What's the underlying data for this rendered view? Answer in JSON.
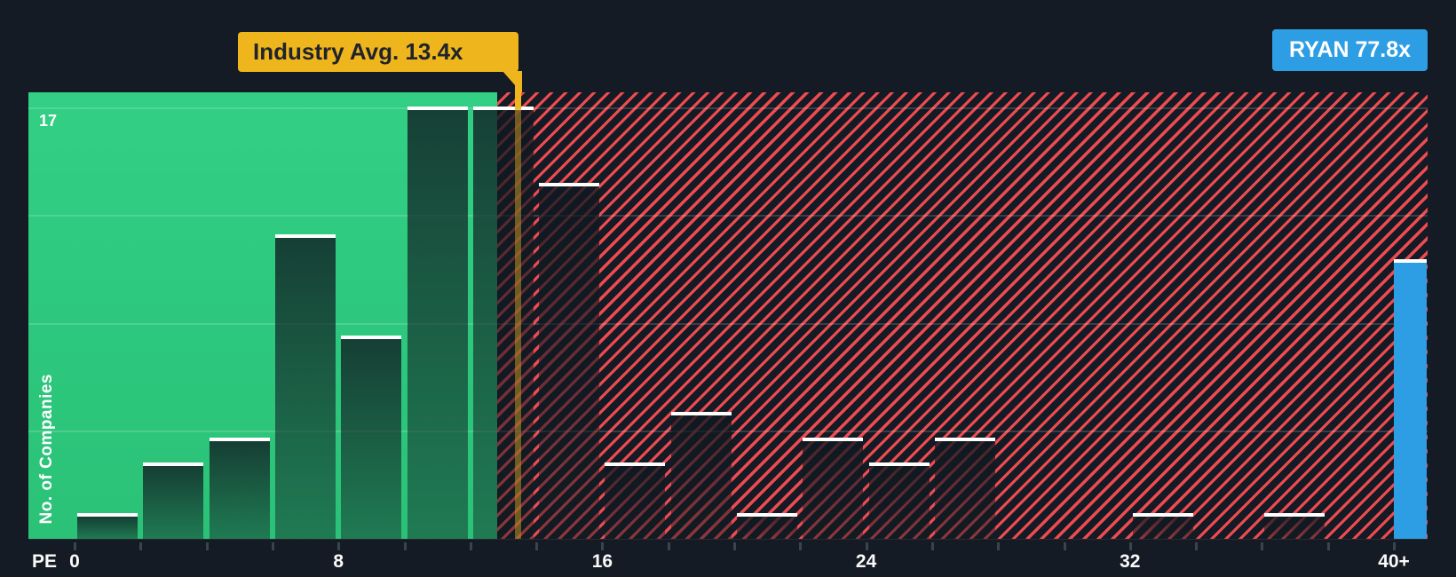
{
  "chart_data": {
    "type": "bar",
    "subtype": "histogram",
    "xlabel": "PE",
    "ylabel": "No. of Companies",
    "max_count_label": "17",
    "bin_width_pe": 2,
    "bins": [
      {
        "pe_from": 0,
        "pe_to": 2,
        "count": 1
      },
      {
        "pe_from": 2,
        "pe_to": 4,
        "count": 3
      },
      {
        "pe_from": 4,
        "pe_to": 6,
        "count": 4
      },
      {
        "pe_from": 6,
        "pe_to": 8,
        "count": 12
      },
      {
        "pe_from": 8,
        "pe_to": 10,
        "count": 8
      },
      {
        "pe_from": 10,
        "pe_to": 12,
        "count": 17
      },
      {
        "pe_from": 12,
        "pe_to": 14,
        "count": 17
      },
      {
        "pe_from": 14,
        "pe_to": 16,
        "count": 14
      },
      {
        "pe_from": 16,
        "pe_to": 18,
        "count": 3
      },
      {
        "pe_from": 18,
        "pe_to": 20,
        "count": 5
      },
      {
        "pe_from": 20,
        "pe_to": 22,
        "count": 1
      },
      {
        "pe_from": 22,
        "pe_to": 24,
        "count": 4
      },
      {
        "pe_from": 24,
        "pe_to": 26,
        "count": 3
      },
      {
        "pe_from": 26,
        "pe_to": 28,
        "count": 4
      },
      {
        "pe_from": 28,
        "pe_to": 30,
        "count": 0
      },
      {
        "pe_from": 30,
        "pe_to": 32,
        "count": 0
      },
      {
        "pe_from": 32,
        "pe_to": 34,
        "count": 1
      },
      {
        "pe_from": 34,
        "pe_to": 36,
        "count": 0
      },
      {
        "pe_from": 36,
        "pe_to": 38,
        "count": 1
      },
      {
        "pe_from": 38,
        "pe_to": 40,
        "count": 0
      }
    ],
    "overflow_bin": {
      "label": "40+",
      "count": 11,
      "is_company_bin": true
    },
    "x_ticks": [
      {
        "value": 0,
        "label": "0"
      },
      {
        "value": 8,
        "label": "8"
      },
      {
        "value": 16,
        "label": "16"
      },
      {
        "value": 24,
        "label": "24"
      },
      {
        "value": 32,
        "label": "32"
      },
      {
        "value": 40,
        "label": "40+"
      }
    ],
    "x_minor_tick_step_pe": 2,
    "ylim": [
      0,
      17.6
    ],
    "gridline_counts": [
      17,
      12.75,
      8.5,
      4.25
    ],
    "legend_position": "none",
    "industry_avg": {
      "label": "Industry Avg. 13.4x",
      "pe": 13.4
    },
    "company_marker": {
      "label": "RYAN 77.8x",
      "ticker": "RYAN",
      "pe": 77.8
    },
    "zones": {
      "below_average": "green solid",
      "above_average": "red diagonal hatch"
    },
    "colors": {
      "background": "#151B24",
      "green_zone": "#2DC97E",
      "hatch_red": "#EE4A51",
      "company_blue": "#2D9EE4",
      "callout_yellow": "#EFB51D",
      "callout_text": "#1F232C",
      "tick_color": "#3A434E"
    }
  }
}
